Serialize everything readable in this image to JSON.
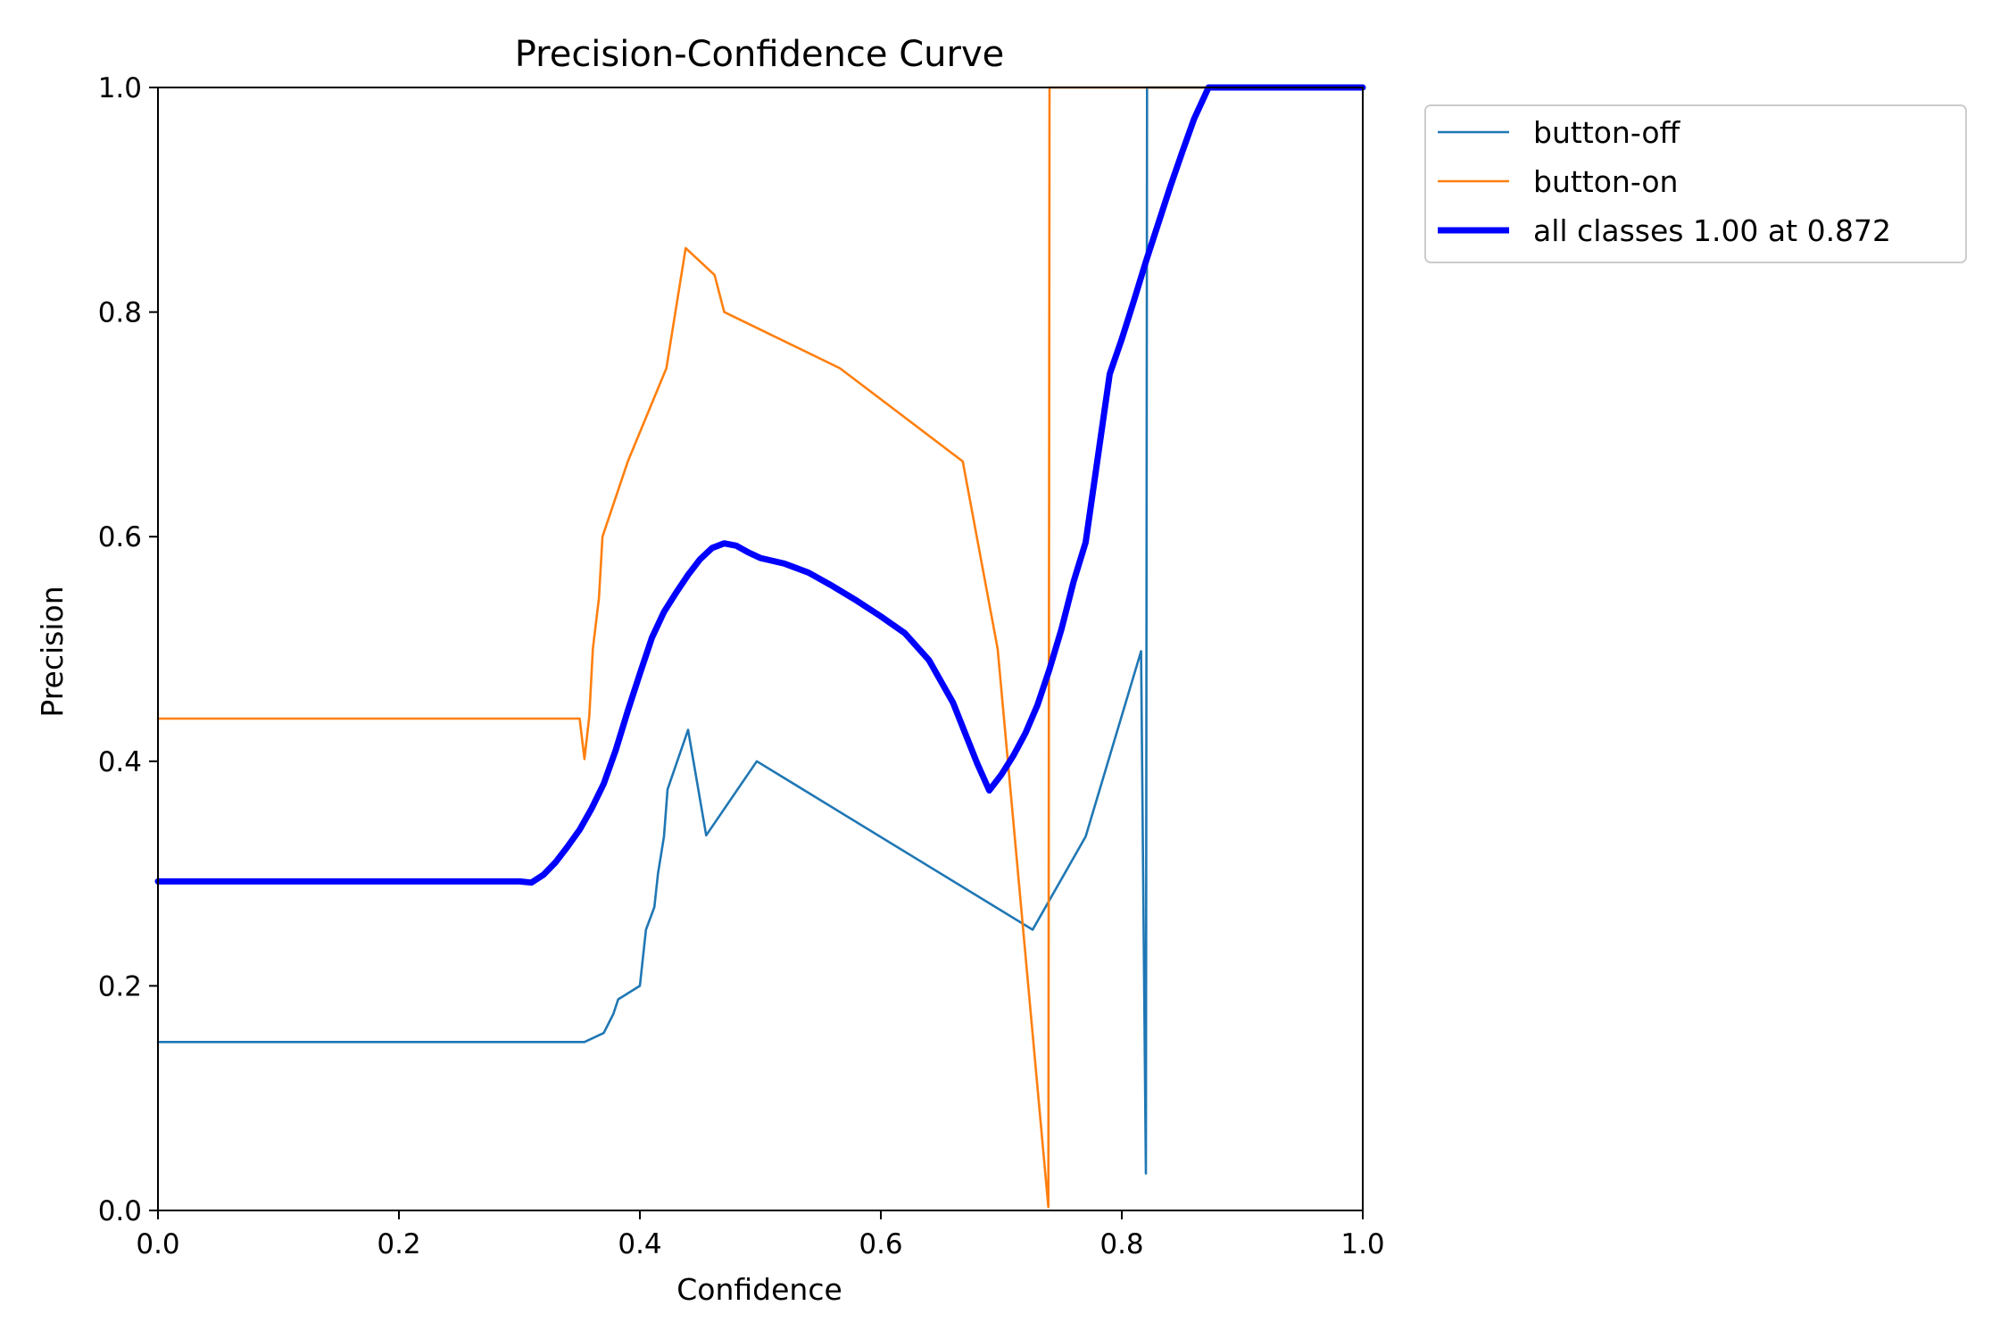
{
  "chart_data": {
    "type": "line",
    "title": "Precision-Confidence Curve",
    "xlabel": "Confidence",
    "ylabel": "Precision",
    "xlim": [
      0,
      1
    ],
    "ylim": [
      0,
      1
    ],
    "xticks": [
      "0.0",
      "0.2",
      "0.4",
      "0.6",
      "0.8",
      "1.0"
    ],
    "yticks": [
      "0.0",
      "0.2",
      "0.4",
      "0.6",
      "0.8",
      "1.0"
    ],
    "grid": false,
    "legend_position": "outside-top-right",
    "series": [
      {
        "name": "button-off",
        "color": "#1f77b4",
        "width": "thin",
        "points": [
          [
            0,
            0.15
          ],
          [
            0.354,
            0.15
          ],
          [
            0.37,
            0.158
          ],
          [
            0.378,
            0.175
          ],
          [
            0.382,
            0.188
          ],
          [
            0.4,
            0.2
          ],
          [
            0.405,
            0.25
          ],
          [
            0.412,
            0.27
          ],
          [
            0.415,
            0.3
          ],
          [
            0.42,
            0.333
          ],
          [
            0.423,
            0.375
          ],
          [
            0.44,
            0.428
          ],
          [
            0.455,
            0.334
          ],
          [
            0.497,
            0.4
          ],
          [
            0.726,
            0.25
          ],
          [
            0.77,
            0.333
          ],
          [
            0.816,
            0.498
          ],
          [
            0.82,
            0.033
          ],
          [
            0.821,
            1.0
          ],
          [
            1.0,
            1.0
          ]
        ]
      },
      {
        "name": "button-on",
        "color": "#ff7f0e",
        "width": "thin",
        "points": [
          [
            0,
            0.438
          ],
          [
            0.35,
            0.438
          ],
          [
            0.354,
            0.402
          ],
          [
            0.358,
            0.44
          ],
          [
            0.361,
            0.5
          ],
          [
            0.366,
            0.545
          ],
          [
            0.369,
            0.6
          ],
          [
            0.39,
            0.667
          ],
          [
            0.422,
            0.75
          ],
          [
            0.438,
            0.857
          ],
          [
            0.462,
            0.833
          ],
          [
            0.47,
            0.8
          ],
          [
            0.566,
            0.75
          ],
          [
            0.668,
            0.667
          ],
          [
            0.697,
            0.5
          ],
          [
            0.739,
            0.003
          ],
          [
            0.74,
            1.0
          ],
          [
            1.0,
            1.0
          ]
        ]
      },
      {
        "name": "all classes 1.00 at 0.872",
        "color": "#0000ff",
        "width": "thick",
        "points": [
          [
            0,
            0.293
          ],
          [
            0.3,
            0.293
          ],
          [
            0.31,
            0.292
          ],
          [
            0.32,
            0.299
          ],
          [
            0.33,
            0.31
          ],
          [
            0.34,
            0.324
          ],
          [
            0.35,
            0.339
          ],
          [
            0.36,
            0.358
          ],
          [
            0.37,
            0.38
          ],
          [
            0.38,
            0.41
          ],
          [
            0.39,
            0.445
          ],
          [
            0.4,
            0.478
          ],
          [
            0.41,
            0.51
          ],
          [
            0.42,
            0.533
          ],
          [
            0.43,
            0.55
          ],
          [
            0.44,
            0.566
          ],
          [
            0.45,
            0.58
          ],
          [
            0.46,
            0.59
          ],
          [
            0.47,
            0.594
          ],
          [
            0.48,
            0.592
          ],
          [
            0.49,
            0.586
          ],
          [
            0.5,
            0.581
          ],
          [
            0.52,
            0.576
          ],
          [
            0.54,
            0.568
          ],
          [
            0.56,
            0.556
          ],
          [
            0.58,
            0.543
          ],
          [
            0.6,
            0.529
          ],
          [
            0.62,
            0.514
          ],
          [
            0.64,
            0.49
          ],
          [
            0.66,
            0.452
          ],
          [
            0.67,
            0.425
          ],
          [
            0.68,
            0.398
          ],
          [
            0.69,
            0.374
          ],
          [
            0.7,
            0.388
          ],
          [
            0.71,
            0.405
          ],
          [
            0.72,
            0.425
          ],
          [
            0.73,
            0.45
          ],
          [
            0.74,
            0.482
          ],
          [
            0.75,
            0.518
          ],
          [
            0.76,
            0.56
          ],
          [
            0.77,
            0.595
          ],
          [
            0.78,
            0.67
          ],
          [
            0.79,
            0.745
          ],
          [
            0.8,
            0.776
          ],
          [
            0.81,
            0.81
          ],
          [
            0.82,
            0.845
          ],
          [
            0.83,
            0.878
          ],
          [
            0.84,
            0.911
          ],
          [
            0.85,
            0.942
          ],
          [
            0.86,
            0.972
          ],
          [
            0.872,
            1.0
          ],
          [
            1.0,
            1.0
          ]
        ]
      }
    ]
  }
}
